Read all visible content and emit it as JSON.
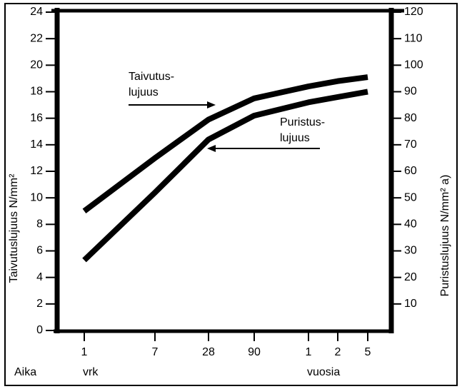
{
  "chart_data": {
    "type": "line",
    "categories": [
      "1",
      "7",
      "28",
      "90",
      "1",
      "2",
      "5"
    ],
    "x_label": "Aika",
    "x_unit_labels": [
      "vrk",
      "vuosia"
    ],
    "y_label": "Taivutuslujuus N/mm²",
    "y2_label": "Puristuslujuus N/mm² a)",
    "ylim": [
      0,
      24
    ],
    "yticks": [
      0,
      2,
      4,
      6,
      8,
      10,
      12,
      14,
      16,
      18,
      20,
      22,
      24
    ],
    "y2lim": [
      0,
      120
    ],
    "y2ticks": [
      10,
      20,
      30,
      40,
      50,
      60,
      70,
      80,
      90,
      100,
      110,
      120
    ],
    "series": [
      {
        "color": "#000000",
        "values": [
          9.0,
          13.0,
          15.9,
          17.5,
          18.4,
          18.8,
          19.1
        ]
      },
      {
        "color": "#000000",
        "axis": "y2",
        "values": [
          26.5,
          52,
          72,
          81,
          86,
          88,
          90
        ]
      }
    ],
    "annotations": [
      {
        "lines": [
          "Taivutus-",
          "lujuus"
        ]
      },
      {
        "lines": [
          "Puristus-",
          "lujuus"
        ]
      }
    ]
  }
}
